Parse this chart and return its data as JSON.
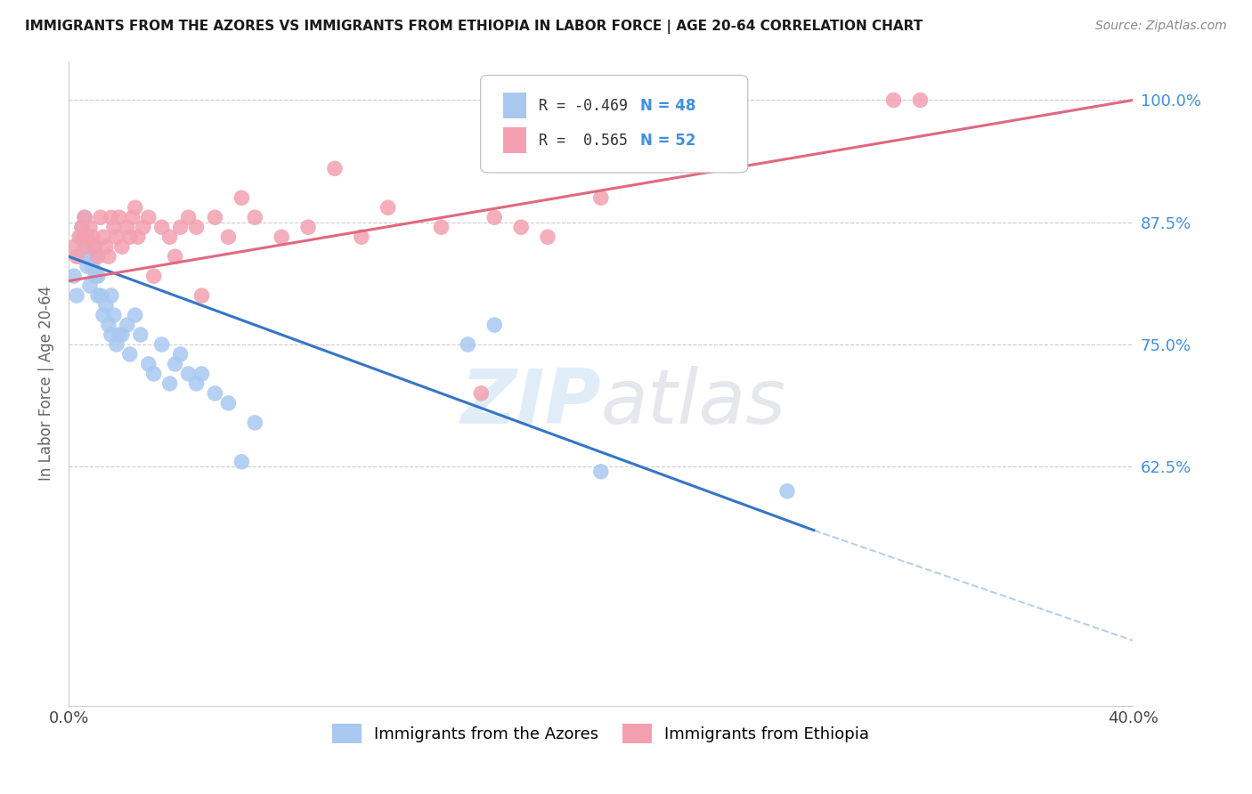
{
  "title": "IMMIGRANTS FROM THE AZORES VS IMMIGRANTS FROM ETHIOPIA IN LABOR FORCE | AGE 20-64 CORRELATION CHART",
  "source": "Source: ZipAtlas.com",
  "ylabel": "In Labor Force | Age 20-64",
  "yticks": [
    100.0,
    87.5,
    75.0,
    62.5
  ],
  "ytick_labels": [
    "100.0%",
    "87.5%",
    "75.0%",
    "62.5%"
  ],
  "xlim": [
    0.0,
    0.4
  ],
  "ylim": [
    38.0,
    104.0
  ],
  "watermark_zip": "ZIP",
  "watermark_atlas": "atlas",
  "legend_r_azores": "R = -0.469",
  "legend_n_azores": "N = 48",
  "legend_r_ethiopia": "R =  0.565",
  "legend_n_ethiopia": "N = 52",
  "color_azores": "#a8c8f0",
  "color_ethiopia": "#f4a0b0",
  "color_azores_line": "#3575c8",
  "color_ethiopia_line": "#e06880",
  "color_right_axis": "#4090e0",
  "azores_x": [
    0.002,
    0.003,
    0.004,
    0.005,
    0.005,
    0.006,
    0.006,
    0.007,
    0.007,
    0.008,
    0.008,
    0.009,
    0.009,
    0.01,
    0.01,
    0.011,
    0.011,
    0.012,
    0.013,
    0.014,
    0.015,
    0.016,
    0.016,
    0.017,
    0.018,
    0.019,
    0.02,
    0.022,
    0.023,
    0.025,
    0.027,
    0.03,
    0.032,
    0.035,
    0.038,
    0.04,
    0.042,
    0.045,
    0.048,
    0.05,
    0.055,
    0.06,
    0.065,
    0.07,
    0.15,
    0.16,
    0.2,
    0.27
  ],
  "azores_y": [
    82.0,
    80.0,
    84.0,
    86.0,
    87.0,
    88.0,
    85.0,
    83.0,
    86.0,
    84.0,
    81.0,
    85.0,
    83.0,
    82.0,
    84.0,
    80.0,
    82.0,
    80.0,
    78.0,
    79.0,
    77.0,
    76.0,
    80.0,
    78.0,
    75.0,
    76.0,
    76.0,
    77.0,
    74.0,
    78.0,
    76.0,
    73.0,
    72.0,
    75.0,
    71.0,
    73.0,
    74.0,
    72.0,
    71.0,
    72.0,
    70.0,
    69.0,
    63.0,
    67.0,
    75.0,
    77.0,
    62.0,
    60.0
  ],
  "ethiopia_x": [
    0.002,
    0.003,
    0.004,
    0.005,
    0.006,
    0.006,
    0.007,
    0.008,
    0.009,
    0.01,
    0.011,
    0.012,
    0.013,
    0.014,
    0.015,
    0.016,
    0.017,
    0.018,
    0.019,
    0.02,
    0.022,
    0.023,
    0.024,
    0.025,
    0.026,
    0.028,
    0.03,
    0.032,
    0.035,
    0.038,
    0.04,
    0.042,
    0.045,
    0.048,
    0.05,
    0.055,
    0.06,
    0.065,
    0.07,
    0.08,
    0.09,
    0.1,
    0.11,
    0.12,
    0.14,
    0.155,
    0.16,
    0.17,
    0.18,
    0.2,
    0.31,
    0.32
  ],
  "ethiopia_y": [
    85.0,
    84.0,
    86.0,
    87.0,
    88.0,
    86.0,
    85.0,
    87.0,
    86.0,
    85.0,
    84.0,
    88.0,
    86.0,
    85.0,
    84.0,
    88.0,
    87.0,
    86.0,
    88.0,
    85.0,
    87.0,
    86.0,
    88.0,
    89.0,
    86.0,
    87.0,
    88.0,
    82.0,
    87.0,
    86.0,
    84.0,
    87.0,
    88.0,
    87.0,
    80.0,
    88.0,
    86.0,
    90.0,
    88.0,
    86.0,
    87.0,
    93.0,
    86.0,
    89.0,
    87.0,
    70.0,
    88.0,
    87.0,
    86.0,
    90.0,
    100.0,
    100.0
  ],
  "azores_line_x": [
    0.0,
    0.28
  ],
  "azores_line_y": [
    84.0,
    56.0
  ],
  "dashed_line_x": [
    0.28,
    0.45
  ],
  "dashed_line_y": [
    56.0,
    40.0
  ],
  "ethiopia_line_x": [
    0.0,
    0.4
  ],
  "ethiopia_line_y": [
    81.5,
    100.0
  ],
  "background_color": "#ffffff",
  "grid_color": "#cccccc"
}
